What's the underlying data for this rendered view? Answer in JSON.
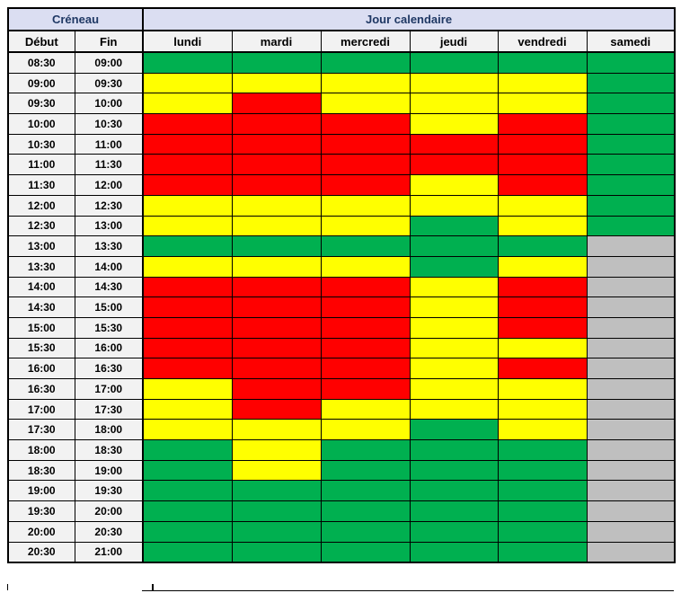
{
  "colors": {
    "header_band_bg": "#DBDEF2",
    "header_band_text": "#1F3864",
    "label_bg": "#F2F2F2",
    "grid_border": "#000000",
    "green": "#00B050",
    "yellow": "#FFFF00",
    "red": "#FF0000",
    "gray": "#BFBFBF"
  },
  "chart_data": {
    "type": "heatmap",
    "title": "",
    "corner_header": "Créneau",
    "days_header": "Jour calendaire",
    "col_headers": [
      "Début",
      "Fin"
    ],
    "x_categories": [
      "lundi",
      "mardi",
      "mercredi",
      "jeudi",
      "vendredi",
      "samedi"
    ],
    "legend": {
      "G": "#00B050",
      "Y": "#FFFF00",
      "R": "#FF0000",
      "X": "#BFBFBF"
    },
    "legend_position": "none",
    "grid": true,
    "rows": [
      {
        "debut": "08:30",
        "fin": "09:00",
        "cells": [
          "G",
          "G",
          "G",
          "G",
          "G",
          "G"
        ]
      },
      {
        "debut": "09:00",
        "fin": "09:30",
        "cells": [
          "Y",
          "Y",
          "Y",
          "Y",
          "Y",
          "G"
        ]
      },
      {
        "debut": "09:30",
        "fin": "10:00",
        "cells": [
          "Y",
          "R",
          "Y",
          "Y",
          "Y",
          "G"
        ]
      },
      {
        "debut": "10:00",
        "fin": "10:30",
        "cells": [
          "R",
          "R",
          "R",
          "Y",
          "R",
          "G"
        ]
      },
      {
        "debut": "10:30",
        "fin": "11:00",
        "cells": [
          "R",
          "R",
          "R",
          "R",
          "R",
          "G"
        ]
      },
      {
        "debut": "11:00",
        "fin": "11:30",
        "cells": [
          "R",
          "R",
          "R",
          "R",
          "R",
          "G"
        ]
      },
      {
        "debut": "11:30",
        "fin": "12:00",
        "cells": [
          "R",
          "R",
          "R",
          "Y",
          "R",
          "G"
        ]
      },
      {
        "debut": "12:00",
        "fin": "12:30",
        "cells": [
          "Y",
          "Y",
          "Y",
          "Y",
          "Y",
          "G"
        ]
      },
      {
        "debut": "12:30",
        "fin": "13:00",
        "cells": [
          "Y",
          "Y",
          "Y",
          "G",
          "Y",
          "G"
        ]
      },
      {
        "debut": "13:00",
        "fin": "13:30",
        "cells": [
          "G",
          "G",
          "G",
          "G",
          "G",
          "X"
        ]
      },
      {
        "debut": "13:30",
        "fin": "14:00",
        "cells": [
          "Y",
          "Y",
          "Y",
          "G",
          "Y",
          "X"
        ]
      },
      {
        "debut": "14:00",
        "fin": "14:30",
        "cells": [
          "R",
          "R",
          "R",
          "Y",
          "R",
          "X"
        ]
      },
      {
        "debut": "14:30",
        "fin": "15:00",
        "cells": [
          "R",
          "R",
          "R",
          "Y",
          "R",
          "X"
        ]
      },
      {
        "debut": "15:00",
        "fin": "15:30",
        "cells": [
          "R",
          "R",
          "R",
          "Y",
          "R",
          "X"
        ]
      },
      {
        "debut": "15:30",
        "fin": "16:00",
        "cells": [
          "R",
          "R",
          "R",
          "Y",
          "Y",
          "X"
        ]
      },
      {
        "debut": "16:00",
        "fin": "16:30",
        "cells": [
          "R",
          "R",
          "R",
          "Y",
          "R",
          "X"
        ]
      },
      {
        "debut": "16:30",
        "fin": "17:00",
        "cells": [
          "Y",
          "R",
          "R",
          "Y",
          "Y",
          "X"
        ]
      },
      {
        "debut": "17:00",
        "fin": "17:30",
        "cells": [
          "Y",
          "R",
          "Y",
          "Y",
          "Y",
          "X"
        ]
      },
      {
        "debut": "17:30",
        "fin": "18:00",
        "cells": [
          "Y",
          "Y",
          "Y",
          "G",
          "Y",
          "X"
        ]
      },
      {
        "debut": "18:00",
        "fin": "18:30",
        "cells": [
          "G",
          "Y",
          "G",
          "G",
          "G",
          "X"
        ]
      },
      {
        "debut": "18:30",
        "fin": "19:00",
        "cells": [
          "G",
          "Y",
          "G",
          "G",
          "G",
          "X"
        ]
      },
      {
        "debut": "19:00",
        "fin": "19:30",
        "cells": [
          "G",
          "G",
          "G",
          "G",
          "G",
          "X"
        ]
      },
      {
        "debut": "19:30",
        "fin": "20:00",
        "cells": [
          "G",
          "G",
          "G",
          "G",
          "G",
          "X"
        ]
      },
      {
        "debut": "20:00",
        "fin": "20:30",
        "cells": [
          "G",
          "G",
          "G",
          "G",
          "G",
          "X"
        ]
      },
      {
        "debut": "20:30",
        "fin": "21:00",
        "cells": [
          "G",
          "G",
          "G",
          "G",
          "G",
          "X"
        ]
      }
    ]
  }
}
